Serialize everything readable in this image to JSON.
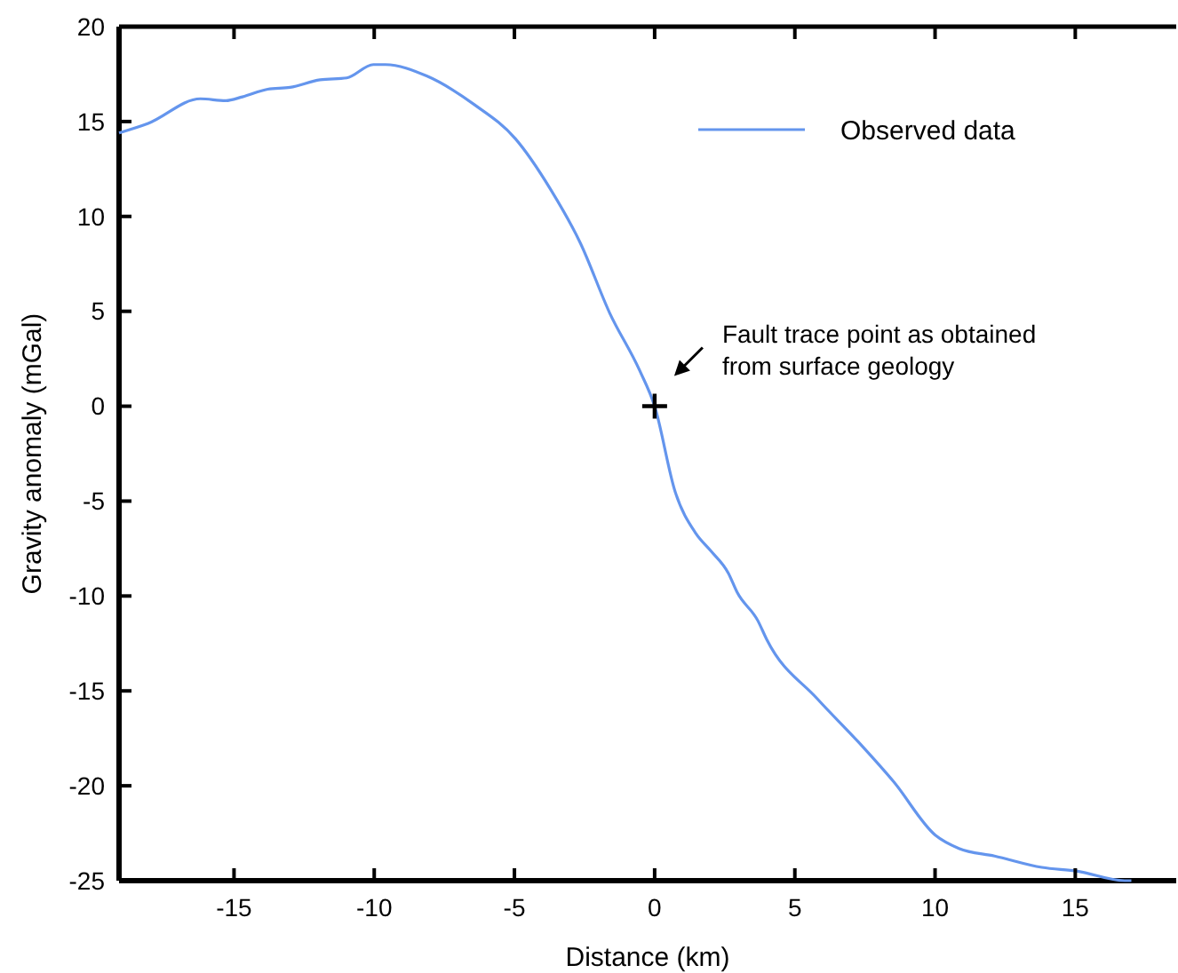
{
  "chart_data": {
    "type": "line",
    "xlabel": "Distance (km)",
    "ylabel": "Gravity anomaly (mGal)",
    "xlim": [
      -19.1,
      18.6
    ],
    "xticks": [
      -15,
      -10,
      -5,
      0,
      5,
      10,
      15
    ],
    "ylim": [
      -25,
      20
    ],
    "yticks": [
      -25,
      -20,
      -15,
      -10,
      -5,
      0,
      5,
      10,
      15,
      20
    ],
    "grid": false,
    "legend": "top right",
    "marker": "none",
    "line_style": "solid",
    "series": [
      {
        "name": "Observed data",
        "color": "#6495ed",
        "x": [
          -19.1,
          -18.06,
          -16.2,
          -15.3,
          -14.7,
          -13.8,
          -13.0,
          -11.93,
          -10.98,
          -10.03,
          -9.6,
          -8.13,
          -6.44,
          -4.97,
          -3.7,
          -2.65,
          -1.6,
          -0.54,
          0,
          0.73,
          1.47,
          1.99,
          2.63,
          2.94,
          3.68,
          4.0,
          5.79,
          7.27,
          8.53,
          10.01,
          10.85,
          12.12,
          13.81,
          15.08,
          16.76,
          17.0
        ],
        "values": [
          14.4,
          14.9,
          16.2,
          16.1,
          16.3,
          16.7,
          16.8,
          17.2,
          17.3,
          18.0,
          18.0,
          17.4,
          15.9,
          14.1,
          11.4,
          8.6,
          4.9,
          1.9,
          0,
          -4.5,
          -6.7,
          -7.6,
          -8.8,
          -9.8,
          -11.3,
          -12.3,
          -15.4,
          -17.7,
          -19.8,
          -22.6,
          -23.3,
          -23.7,
          -24.3,
          -24.5,
          -25.0,
          -25
        ]
      },
      {
        "type": "scatter",
        "marker": "cross",
        "color": "#000000",
        "x": [
          0
        ],
        "values": [
          0
        ]
      }
    ],
    "annotations": [
      {
        "text": "Fault trace point as obtained from surface geology",
        "x": 0,
        "y": 0
      }
    ]
  }
}
